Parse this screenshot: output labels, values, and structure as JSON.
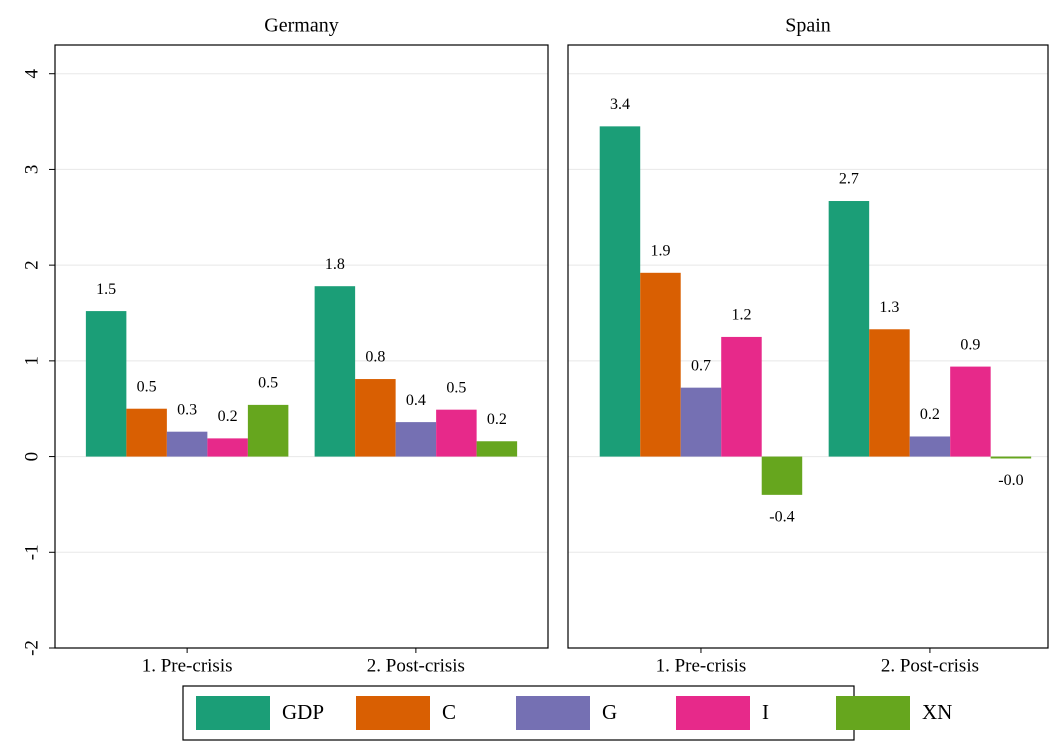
{
  "chart_data": [
    {
      "type": "bar",
      "title": "Germany",
      "categories": [
        "1. Pre-crisis",
        "2. Post-crisis"
      ],
      "series": [
        {
          "name": "GDP",
          "color": "#1b9e77",
          "values": [
            1.52,
            1.78
          ],
          "value_labels": [
            "1.5",
            "1.8"
          ]
        },
        {
          "name": "C",
          "color": "#d95f02",
          "values": [
            0.5,
            0.81
          ],
          "value_labels": [
            "0.5",
            "0.8"
          ]
        },
        {
          "name": "G",
          "color": "#7570b3",
          "values": [
            0.26,
            0.36
          ],
          "value_labels": [
            "0.3",
            "0.4"
          ]
        },
        {
          "name": "I",
          "color": "#e7298a",
          "values": [
            0.19,
            0.49
          ],
          "value_labels": [
            "0.2",
            "0.5"
          ]
        },
        {
          "name": "XN",
          "color": "#66a61e",
          "values": [
            0.54,
            0.16
          ],
          "value_labels": [
            "0.5",
            "0.2"
          ]
        }
      ],
      "ylim": [
        -2,
        4.3
      ],
      "yticks": [
        -2,
        -1,
        0,
        1,
        2,
        3,
        4
      ],
      "grid": true
    },
    {
      "type": "bar",
      "title": "Spain",
      "categories": [
        "1. Pre-crisis",
        "2. Post-crisis"
      ],
      "series": [
        {
          "color": "#1b9e77",
          "values": [
            3.45,
            2.67
          ],
          "value_labels": [
            "3.4",
            "2.7"
          ]
        },
        {
          "color": "#d95f02",
          "values": [
            1.92,
            1.33
          ],
          "value_labels": [
            "1.9",
            "1.3"
          ]
        },
        {
          "color": "#7570b3",
          "values": [
            0.72,
            0.21
          ],
          "value_labels": [
            "0.7",
            "0.2"
          ]
        },
        {
          "color": "#e7298a",
          "values": [
            1.25,
            0.94
          ],
          "value_labels": [
            "1.2",
            "0.9"
          ]
        },
        {
          "color": "#66a61e",
          "values": [
            -0.4,
            -0.02
          ],
          "value_labels": [
            "-0.4",
            "-0.0"
          ]
        }
      ],
      "ylim": [
        -2,
        4.3
      ],
      "yticks": [
        -2,
        -1,
        0,
        1,
        2,
        3,
        4
      ],
      "grid": true
    }
  ]
}
